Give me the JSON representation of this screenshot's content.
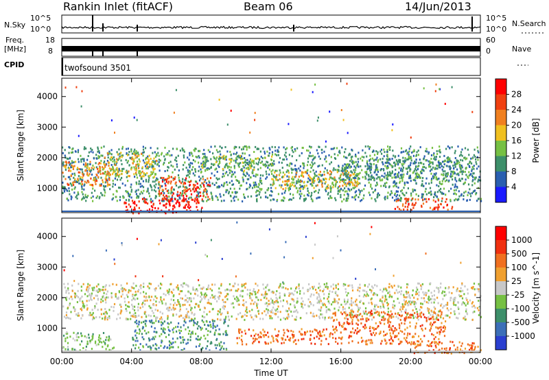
{
  "header": {
    "station": "Rankin Inlet (fitACF)",
    "beam": "Beam 06",
    "date": "14/Jun/2013"
  },
  "noise_panel": {
    "left_label": "N.Sky",
    "right_label": "N.Search",
    "left_ticks": [
      "10^5",
      "10^0"
    ],
    "right_ticks": [
      "10^5",
      "10^0"
    ]
  },
  "freq_panel": {
    "left_label_top": "Freq.",
    "left_label_bottom": "[MHz]",
    "right_label": "Nave",
    "left_ticks": [
      "18",
      "8"
    ],
    "right_ticks": [
      "60",
      "0"
    ]
  },
  "cpid": {
    "label": "CPID",
    "value": "twofsound 3501"
  },
  "chart_data": [
    {
      "type": "heatmap",
      "name": "power",
      "ylabel": "Slant Range [km]",
      "xlabel": "",
      "x_range_hours": [
        0,
        24
      ],
      "ylim": [
        200,
        4600
      ],
      "yticks": [
        1000,
        2000,
        3000,
        4000
      ],
      "colorbar": {
        "label": "Power [dB]",
        "ticks": [
          "4",
          "8",
          "12",
          "16",
          "20",
          "24",
          "28"
        ],
        "colors": [
          "#1a1aff",
          "#2a5fb0",
          "#3d8f6a",
          "#76c043",
          "#f0c020",
          "#f08020",
          "#f04010",
          "#ff0000"
        ]
      },
      "regions": [
        {
          "t0": 0.0,
          "t1": 24.0,
          "r0": 600,
          "r1": 2400,
          "level": 2
        },
        {
          "t0": 0.0,
          "t1": 2.8,
          "r0": 1100,
          "r1": 1900,
          "level": 5
        },
        {
          "t0": 2.0,
          "t1": 5.5,
          "r0": 1400,
          "r1": 2200,
          "level": 4
        },
        {
          "t0": 3.5,
          "t1": 8.0,
          "r0": 200,
          "r1": 700,
          "level": 7
        },
        {
          "t0": 5.5,
          "t1": 8.5,
          "r0": 600,
          "r1": 1400,
          "level": 6
        },
        {
          "t0": 8.0,
          "t1": 12.0,
          "r0": 1600,
          "r1": 2100,
          "level": 3
        },
        {
          "t0": 12.0,
          "t1": 17.0,
          "r0": 1000,
          "r1": 1600,
          "level": 4
        },
        {
          "t0": 19.0,
          "t1": 22.5,
          "r0": 300,
          "r1": 700,
          "level": 6
        },
        {
          "t0": 16.0,
          "t1": 24.0,
          "r0": 1300,
          "r1": 2000,
          "level": 2
        }
      ]
    },
    {
      "type": "heatmap",
      "name": "velocity",
      "ylabel": "Slant Range [km]",
      "xlabel": "Time UT",
      "x_range_hours": [
        0,
        24
      ],
      "ylim": [
        200,
        4600
      ],
      "yticks": [
        1000,
        2000,
        3000,
        4000
      ],
      "xticks": [
        "00:00",
        "04:00",
        "08:00",
        "12:00",
        "16:00",
        "20:00",
        "00:00"
      ],
      "colorbar": {
        "label": "Velocity [m s^-1]",
        "ticks": [
          "1000",
          "500",
          "100",
          "25",
          "-25",
          "-100",
          "-500",
          "-1000"
        ],
        "colors": [
          "#2a3fd0",
          "#3c6fb8",
          "#3d8f6a",
          "#76c043",
          "#c8c8c8",
          "#f0a030",
          "#f07020",
          "#f03010",
          "#ff0000"
        ]
      },
      "regions": [
        {
          "t0": 0.0,
          "t1": 24.0,
          "r0": 1300,
          "r1": 2500,
          "level": 4
        },
        {
          "t0": 0.0,
          "t1": 3.0,
          "r0": 300,
          "r1": 900,
          "level": 3
        },
        {
          "t0": 4.0,
          "t1": 9.5,
          "r0": 300,
          "r1": 1300,
          "level": 2
        },
        {
          "t0": 10.0,
          "t1": 15.5,
          "r0": 500,
          "r1": 1000,
          "level": 6
        },
        {
          "t0": 15.5,
          "t1": 22.0,
          "r0": 500,
          "r1": 1600,
          "level": 6
        },
        {
          "t0": 20.0,
          "t1": 24.0,
          "r0": 200,
          "r1": 600,
          "level": 6
        }
      ]
    }
  ]
}
